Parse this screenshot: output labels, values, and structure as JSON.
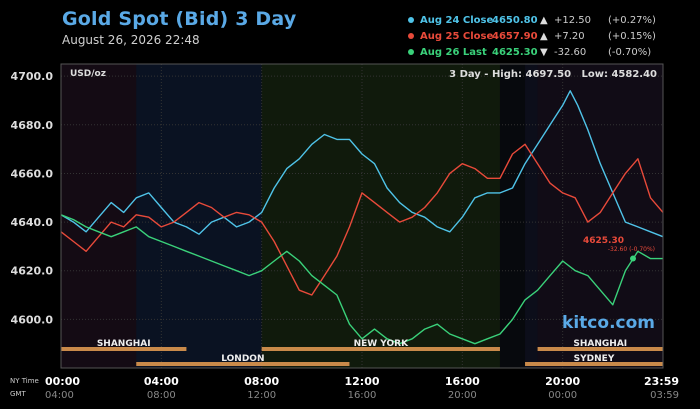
{
  "header": {
    "title": "Gold Spot (Bid) 3 Day",
    "subtitle": "August 26, 2026 22:48"
  },
  "legend": [
    {
      "label": "Aug 24 Close",
      "value": "4650.80",
      "arrow": "▲",
      "change": "+12.50",
      "pct": "(+0.27%)",
      "color": "#4fc3e8"
    },
    {
      "label": "Aug 25 Close",
      "value": "4657.90",
      "arrow": "▲",
      "change": "+7.20",
      "pct": "(+0.15%)",
      "color": "#e84a3a"
    },
    {
      "label": "Aug 26 Last",
      "value": "4625.30",
      "arrow": "▼",
      "change": "-32.60",
      "pct": "(-0.70%)",
      "color": "#3ad17a"
    }
  ],
  "plot": {
    "unit": "USD/oz",
    "stats": "3 Day - High: 4697.50   Low: 4582.40",
    "watermark": "kitco.com",
    "last_price": "4625.30",
    "last_change": "-32.60 (-0.70%)"
  },
  "sessions_top": [
    {
      "name": "SHANGHAI",
      "start": 0,
      "end": 5
    },
    {
      "name": "NEW YORK",
      "start": 8,
      "end": 17.5
    },
    {
      "name": "SHANGHAI",
      "start": 19,
      "end": 24
    }
  ],
  "sessions_bottom": [
    {
      "name": "LONDON",
      "start": 3,
      "end": 11.5
    },
    {
      "name": "SYDNEY",
      "start": 18.5,
      "end": 24
    }
  ],
  "time_axis": {
    "ny_label": "NY Time",
    "gmt_label": "GMT",
    "ny": [
      "00:00",
      "04:00",
      "08:00",
      "12:00",
      "16:00",
      "20:00",
      "23:59"
    ],
    "gmt": [
      "04:00",
      "08:00",
      "12:00",
      "16:00",
      "20:00",
      "00:00",
      "03:59"
    ]
  },
  "chart_data": {
    "type": "line",
    "title": "Gold Spot (Bid) 3 Day",
    "ylabel": "USD/oz",
    "ylim": [
      4580,
      4705
    ],
    "xlim": [
      0,
      24
    ],
    "yticks": [
      4600.0,
      4620.0,
      4640.0,
      4660.0,
      4680.0,
      4700.0
    ],
    "xticks_ny": [
      "00:00",
      "04:00",
      "08:00",
      "12:00",
      "16:00",
      "20:00",
      "23:59"
    ],
    "grid": true,
    "series": [
      {
        "name": "Aug 24",
        "color": "#4fc3e8",
        "x": [
          0,
          0.5,
          1,
          1.5,
          2,
          2.5,
          3,
          3.5,
          4,
          4.5,
          5,
          5.5,
          6,
          6.5,
          7,
          7.5,
          8,
          8.5,
          9,
          9.5,
          10,
          10.5,
          11,
          11.5,
          12,
          12.5,
          13,
          13.5,
          14,
          14.5,
          15,
          15.5,
          16,
          16.5,
          17,
          17.5,
          18,
          18.5,
          19,
          19.5,
          20,
          20.3,
          20.6,
          21,
          21.5,
          22,
          22.5,
          23,
          23.5,
          24
        ],
        "y": [
          4643,
          4640,
          4636,
          4642,
          4648,
          4644,
          4650,
          4652,
          4646,
          4640,
          4638,
          4635,
          4640,
          4642,
          4638,
          4640,
          4644,
          4654,
          4662,
          4666,
          4672,
          4676,
          4674,
          4674,
          4668,
          4664,
          4654,
          4648,
          4644,
          4642,
          4638,
          4636,
          4642,
          4650,
          4652,
          4652,
          4654,
          4664,
          4672,
          4680,
          4688,
          4694,
          4688,
          4678,
          4664,
          4652,
          4640,
          4638,
          4636,
          4634
        ]
      },
      {
        "name": "Aug 25",
        "color": "#e84a3a",
        "x": [
          0,
          0.5,
          1,
          1.5,
          2,
          2.5,
          3,
          3.5,
          4,
          4.5,
          5,
          5.5,
          6,
          6.5,
          7,
          7.5,
          8,
          8.5,
          9,
          9.5,
          10,
          10.5,
          11,
          11.5,
          12,
          12.5,
          13,
          13.5,
          14,
          14.5,
          15,
          15.5,
          16,
          16.5,
          17,
          17.5,
          18,
          18.5,
          19,
          19.5,
          20,
          20.5,
          21,
          21.5,
          22,
          22.5,
          23,
          23.5,
          24
        ],
        "y": [
          4636,
          4632,
          4628,
          4634,
          4640,
          4638,
          4643,
          4642,
          4638,
          4640,
          4644,
          4648,
          4646,
          4642,
          4644,
          4643,
          4640,
          4632,
          4622,
          4612,
          4610,
          4618,
          4626,
          4638,
          4652,
          4648,
          4644,
          4640,
          4642,
          4646,
          4652,
          4660,
          4664,
          4662,
          4658,
          4658,
          4668,
          4672,
          4664,
          4656,
          4652,
          4650,
          4640,
          4644,
          4652,
          4660,
          4666,
          4650,
          4644
        ]
      },
      {
        "name": "Aug 26",
        "color": "#3ad17a",
        "x": [
          0,
          0.5,
          1,
          1.5,
          2,
          2.5,
          3,
          3.5,
          4,
          4.5,
          5,
          5.5,
          6,
          6.5,
          7,
          7.5,
          8,
          8.5,
          9,
          9.5,
          10,
          10.5,
          11,
          11.5,
          12,
          12.5,
          13,
          13.5,
          14,
          14.5,
          15,
          15.5,
          16,
          16.5,
          17,
          17.5,
          18,
          18.5,
          19,
          19.5,
          20,
          20.5,
          21,
          21.5,
          22,
          22.5,
          23,
          23.5,
          24
        ],
        "y": [
          4643,
          4641,
          4638,
          4636,
          4634,
          4636,
          4638,
          4634,
          4632,
          4630,
          4628,
          4626,
          4624,
          4622,
          4620,
          4618,
          4620,
          4624,
          4628,
          4624,
          4618,
          4614,
          4610,
          4598,
          4592,
          4596,
          4592,
          4590,
          4592,
          4596,
          4598,
          4594,
          4592,
          4590,
          4592,
          4594,
          4600,
          4608,
          4612,
          4618,
          4624,
          4620,
          4618,
          4612,
          4606,
          4620,
          4628,
          4625,
          4625
        ]
      }
    ]
  }
}
